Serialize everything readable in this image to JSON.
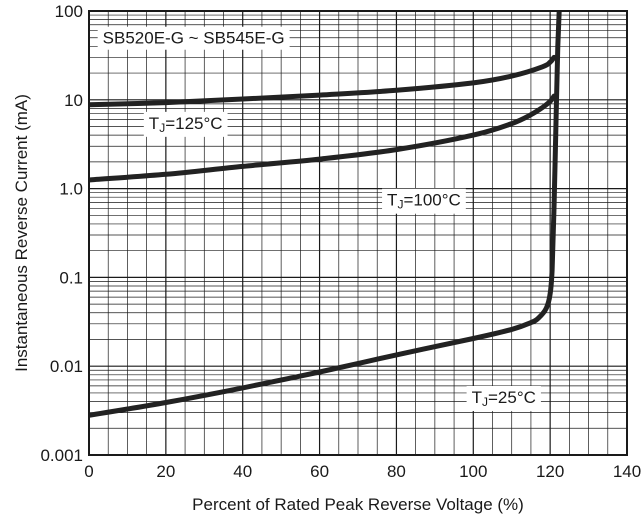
{
  "chart_data": {
    "type": "line",
    "title": "",
    "xlabel": "Percent of Rated Peak Reverse Voltage (%)",
    "ylabel": "Instantaneous Reverse Current (mA)",
    "xlim": [
      0,
      140
    ],
    "ylim": [
      0.001,
      100
    ],
    "yscale": "log",
    "grid": true,
    "x_ticks": [
      0,
      20,
      40,
      60,
      80,
      100,
      120,
      140
    ],
    "x_tick_labels": [
      "0",
      "20",
      "40",
      "60",
      "80",
      "100",
      "120",
      "140"
    ],
    "y_ticks": [
      0.001,
      0.01,
      0.1,
      1.0,
      10,
      100
    ],
    "y_tick_labels": [
      "0.001",
      "0.01",
      "0.1",
      "1.0",
      "10",
      "100"
    ],
    "annotations": [
      {
        "text": "SB520E-G ~ SB545E-G",
        "x": 2,
        "y": 50
      },
      {
        "text_main": "T",
        "text_sub": "J",
        "text_rest": "=125°C",
        "x": 14,
        "y": 5.5
      },
      {
        "text_main": "T",
        "text_sub": "J",
        "text_rest": "=100°C",
        "x": 76,
        "y": 0.75
      },
      {
        "text_main": "T",
        "text_sub": "J",
        "text_rest": "=25°C",
        "x": 98,
        "y": 0.0045
      }
    ],
    "series": [
      {
        "x": [
          0,
          20,
          40,
          60,
          80,
          100,
          110,
          118,
          120,
          121
        ],
        "y": [
          8.8,
          9.3,
          10.2,
          11.3,
          12.8,
          15.5,
          18.5,
          23.5,
          26.5,
          30
        ]
      },
      {
        "x": [
          0,
          20,
          40,
          60,
          80,
          100,
          110,
          115,
          118,
          120,
          121
        ],
        "y": [
          1.25,
          1.45,
          1.78,
          2.15,
          2.75,
          4.0,
          5.4,
          6.8,
          8.2,
          9.6,
          11
        ]
      },
      {
        "x": [
          0,
          20,
          40,
          60,
          80,
          100,
          110,
          115,
          117,
          119,
          120,
          120.5,
          121,
          121.5,
          122,
          122.5
        ],
        "y": [
          0.0028,
          0.0039,
          0.0057,
          0.0086,
          0.0134,
          0.0205,
          0.026,
          0.031,
          0.035,
          0.045,
          0.065,
          0.12,
          0.6,
          5,
          40,
          150
        ]
      }
    ]
  }
}
